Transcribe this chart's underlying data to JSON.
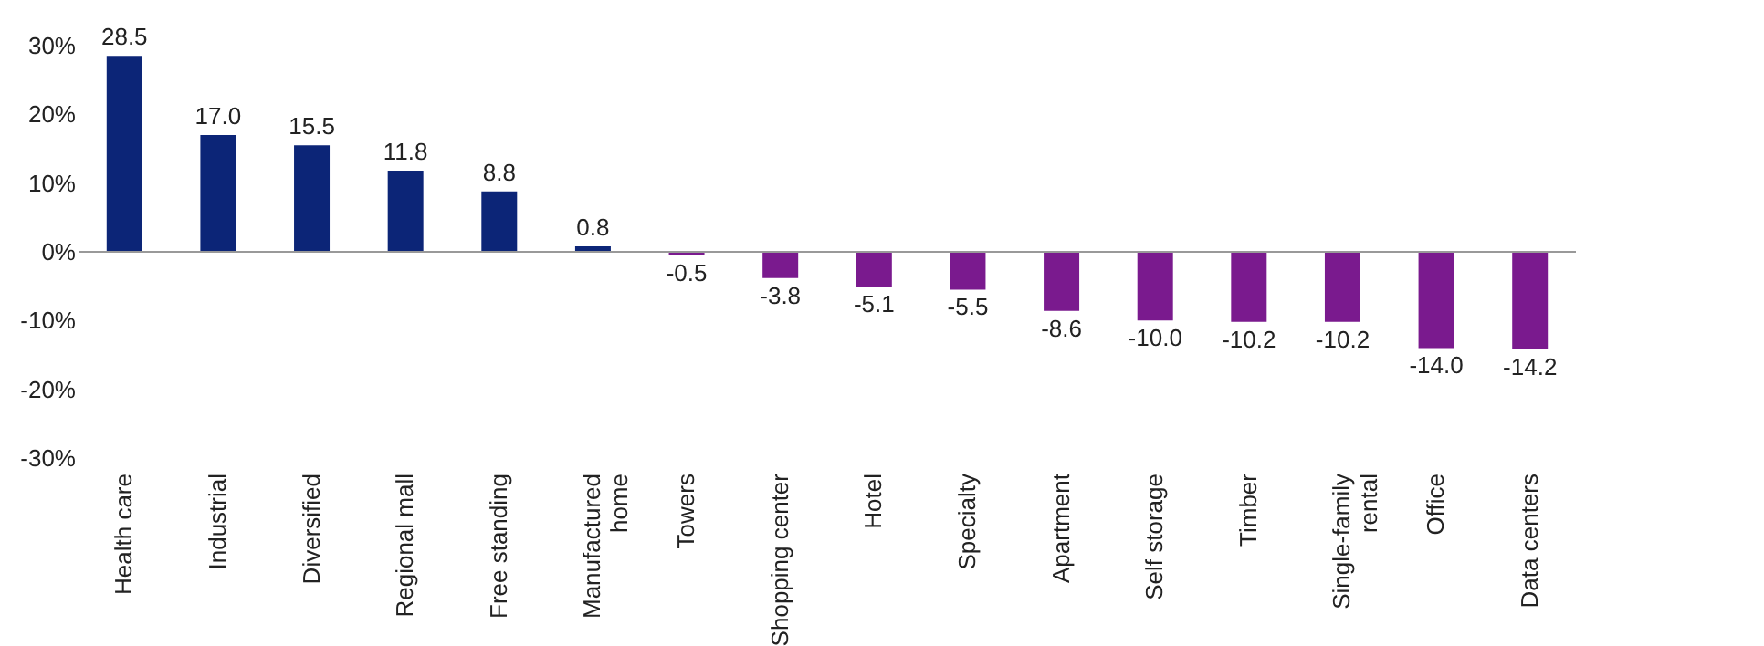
{
  "chart_data": {
    "type": "bar",
    "categories": [
      "Health care",
      "Industrial",
      "Diversified",
      "Regional mall",
      "Free standing",
      "Manufactured home",
      "Towers",
      "Shopping center",
      "Hotel",
      "Specialty",
      "Apartment",
      "Self storage",
      "Timber",
      "Single-family rental",
      "Office",
      "Data centers"
    ],
    "values": [
      28.5,
      17.0,
      15.5,
      11.8,
      8.8,
      0.8,
      -0.5,
      -3.8,
      -5.1,
      -5.5,
      -8.6,
      -10.0,
      -10.2,
      -10.2,
      -14.0,
      -14.2
    ],
    "colors": [
      "#0c2577",
      "#0c2577",
      "#0c2577",
      "#0c2577",
      "#0c2577",
      "#0c2577",
      "#7a1a8e",
      "#7a1a8e",
      "#7a1a8e",
      "#7a1a8e",
      "#7a1a8e",
      "#7a1a8e",
      "#7a1a8e",
      "#7a1a8e",
      "#7a1a8e",
      "#7a1a8e"
    ],
    "ylim": [
      -30,
      30
    ],
    "yticks": [
      {
        "value": -30,
        "label": "-30%"
      },
      {
        "value": -20,
        "label": "-20%"
      },
      {
        "value": -10,
        "label": "-10%"
      },
      {
        "value": 0,
        "label": "0%"
      },
      {
        "value": 10,
        "label": "10%"
      },
      {
        "value": 20,
        "label": "20%"
      },
      {
        "value": 30,
        "label": "30%"
      }
    ],
    "value_labels": [
      "28.5",
      "17.0",
      "15.5",
      "11.8",
      "8.8",
      "0.8",
      "-0.5",
      "-3.8",
      "-5.1",
      "-5.5",
      "-8.6",
      "-10.0",
      "-10.2",
      "-10.2",
      "-14.0",
      "-14.2"
    ]
  }
}
